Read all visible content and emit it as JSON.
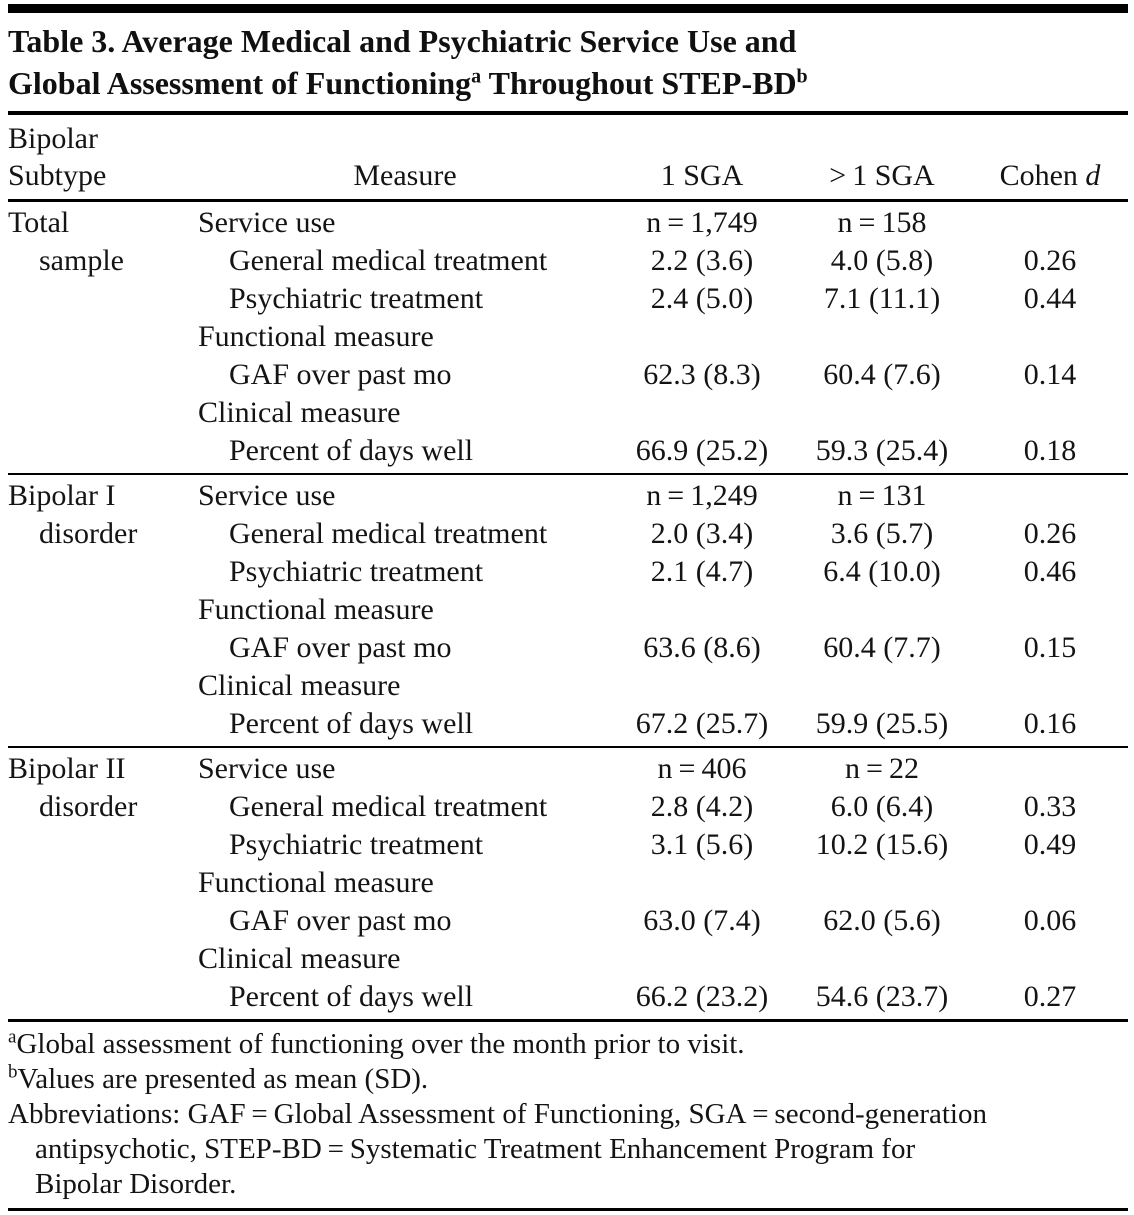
{
  "colors": {
    "background": "#ffffff",
    "text": "#141414",
    "rule": "#000000"
  },
  "title": {
    "line1": "Table 3. Average Medical and Psychiatric Service Use and",
    "line2_text1": "Global Assessment of Functioning",
    "line2_sup1": "a",
    "line2_text2": " Throughout STEP-BD",
    "line2_sup2": "b"
  },
  "header": {
    "col1_line1": "Bipolar",
    "col1_line2": "Subtype",
    "col2": "Measure",
    "col3": "1 SGA",
    "col4": "> 1 SGA",
    "col5_text": "Cohen",
    "col5_italic": "d"
  },
  "sections": [
    {
      "rows": [
        {
          "subtype": "Total",
          "subtype_indent": false,
          "measure": "Service use",
          "measure_indent": false,
          "sga1": "n = 1,749",
          "sga_gt1": "n = 158",
          "cohen_d": ""
        },
        {
          "subtype": "sample",
          "subtype_indent": true,
          "measure": "General medical treatment",
          "measure_indent": true,
          "sga1": "2.2 (3.6)",
          "sga_gt1": "4.0 (5.8)",
          "cohen_d": "0.26"
        },
        {
          "subtype": "",
          "subtype_indent": false,
          "measure": "Psychiatric treatment",
          "measure_indent": true,
          "sga1": "2.4 (5.0)",
          "sga_gt1": "7.1 (11.1)",
          "cohen_d": "0.44"
        },
        {
          "subtype": "",
          "subtype_indent": false,
          "measure": "Functional measure",
          "measure_indent": false,
          "sga1": "",
          "sga_gt1": "",
          "cohen_d": ""
        },
        {
          "subtype": "",
          "subtype_indent": false,
          "measure": "GAF over past mo",
          "measure_indent": true,
          "sga1": "62.3 (8.3)",
          "sga_gt1": "60.4 (7.6)",
          "cohen_d": "0.14"
        },
        {
          "subtype": "",
          "subtype_indent": false,
          "measure": "Clinical measure",
          "measure_indent": false,
          "sga1": "",
          "sga_gt1": "",
          "cohen_d": ""
        },
        {
          "subtype": "",
          "subtype_indent": false,
          "measure": "Percent of days well",
          "measure_indent": true,
          "sga1": "66.9 (25.2)",
          "sga_gt1": "59.3 (25.4)",
          "cohen_d": "0.18"
        }
      ]
    },
    {
      "rows": [
        {
          "subtype": "Bipolar I",
          "subtype_indent": false,
          "measure": "Service use",
          "measure_indent": false,
          "sga1": "n = 1,249",
          "sga_gt1": "n = 131",
          "cohen_d": ""
        },
        {
          "subtype": "disorder",
          "subtype_indent": true,
          "measure": "General medical treatment",
          "measure_indent": true,
          "sga1": "2.0 (3.4)",
          "sga_gt1": "3.6 (5.7)",
          "cohen_d": "0.26"
        },
        {
          "subtype": "",
          "subtype_indent": false,
          "measure": "Psychiatric treatment",
          "measure_indent": true,
          "sga1": "2.1 (4.7)",
          "sga_gt1": "6.4 (10.0)",
          "cohen_d": "0.46"
        },
        {
          "subtype": "",
          "subtype_indent": false,
          "measure": "Functional measure",
          "measure_indent": false,
          "sga1": "",
          "sga_gt1": "",
          "cohen_d": ""
        },
        {
          "subtype": "",
          "subtype_indent": false,
          "measure": "GAF over past mo",
          "measure_indent": true,
          "sga1": "63.6 (8.6)",
          "sga_gt1": "60.4 (7.7)",
          "cohen_d": "0.15"
        },
        {
          "subtype": "",
          "subtype_indent": false,
          "measure": "Clinical measure",
          "measure_indent": false,
          "sga1": "",
          "sga_gt1": "",
          "cohen_d": ""
        },
        {
          "subtype": "",
          "subtype_indent": false,
          "measure": "Percent of days well",
          "measure_indent": true,
          "sga1": "67.2 (25.7)",
          "sga_gt1": "59.9 (25.5)",
          "cohen_d": "0.16"
        }
      ]
    },
    {
      "rows": [
        {
          "subtype": "Bipolar II",
          "subtype_indent": false,
          "measure": "Service use",
          "measure_indent": false,
          "sga1": "n = 406",
          "sga_gt1": "n = 22",
          "cohen_d": ""
        },
        {
          "subtype": "disorder",
          "subtype_indent": true,
          "measure": "General medical treatment",
          "measure_indent": true,
          "sga1": "2.8 (4.2)",
          "sga_gt1": "6.0 (6.4)",
          "cohen_d": "0.33"
        },
        {
          "subtype": "",
          "subtype_indent": false,
          "measure": "Psychiatric treatment",
          "measure_indent": true,
          "sga1": "3.1 (5.6)",
          "sga_gt1": "10.2 (15.6)",
          "cohen_d": "0.49"
        },
        {
          "subtype": "",
          "subtype_indent": false,
          "measure": "Functional measure",
          "measure_indent": false,
          "sga1": "",
          "sga_gt1": "",
          "cohen_d": ""
        },
        {
          "subtype": "",
          "subtype_indent": false,
          "measure": "GAF over past mo",
          "measure_indent": true,
          "sga1": "63.0 (7.4)",
          "sga_gt1": "62.0 (5.6)",
          "cohen_d": "0.06"
        },
        {
          "subtype": "",
          "subtype_indent": false,
          "measure": "Clinical measure",
          "measure_indent": false,
          "sga1": "",
          "sga_gt1": "",
          "cohen_d": ""
        },
        {
          "subtype": "",
          "subtype_indent": false,
          "measure": "Percent of days well",
          "measure_indent": true,
          "sga1": "66.2 (23.2)",
          "sga_gt1": "54.6 (23.7)",
          "cohen_d": "0.27"
        }
      ]
    }
  ],
  "footnotes": {
    "a_marker": "a",
    "a_text": "Global assessment of functioning over the month prior to visit.",
    "b_marker": "b",
    "b_text": "Values are presented as mean (SD).",
    "abbrev_line1": "Abbreviations: GAF = Global Assessment of Functioning, SGA = second-generation",
    "abbrev_line2": "antipsychotic, STEP-BD = Systematic Treatment Enhancement Program for",
    "abbrev_line3": "Bipolar Disorder."
  }
}
